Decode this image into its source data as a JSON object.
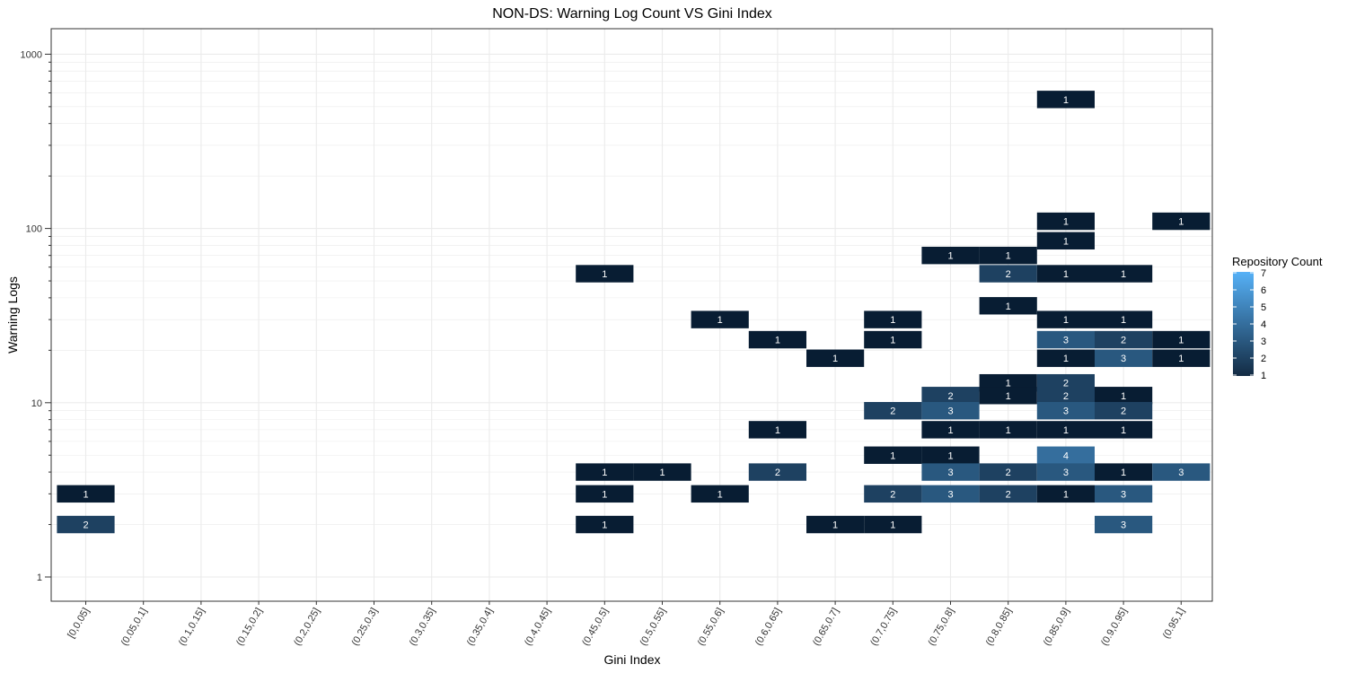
{
  "chart_data": {
    "type": "heatmap",
    "title": "NON-DS: Warning Log Count VS Gini Index",
    "xlabel": "Gini Index",
    "ylabel": "Warning Logs",
    "y_scale": "log10",
    "y_ticks": [
      1,
      10,
      100,
      1000
    ],
    "y_tick_labels": [
      "1",
      "10",
      "100",
      "1000"
    ],
    "categories": [
      "[0,0.05]",
      "(0.05,0.1]",
      "(0.1,0.15]",
      "(0.15,0.2]",
      "(0.2,0.25]",
      "(0.25,0.3]",
      "(0.3,0.35]",
      "(0.35,0.4]",
      "(0.4,0.45]",
      "(0.45,0.5]",
      "(0.5,0.55]",
      "(0.55,0.6]",
      "(0.6,0.65]",
      "(0.65,0.7]",
      "(0.7,0.75]",
      "(0.75,0.8]",
      "(0.8,0.85]",
      "(0.85,0.9]",
      "(0.9,0.95]",
      "(0.95,1]"
    ],
    "grid": true,
    "legend": {
      "title": "Repository Count",
      "position": "right",
      "min": 1,
      "max": 7,
      "labels": [
        "7",
        "6",
        "5",
        "4",
        "3",
        "2",
        "1"
      ],
      "low_color": "#132B43",
      "high_color": "#56B1F7"
    },
    "cells": [
      {
        "x": "[0,0.05]",
        "y": 3,
        "count": 1
      },
      {
        "x": "[0,0.05]",
        "y": 2,
        "count": 2
      },
      {
        "x": "(0.45,0.5]",
        "y": 55,
        "count": 1
      },
      {
        "x": "(0.45,0.5]",
        "y": 4,
        "count": 1
      },
      {
        "x": "(0.45,0.5]",
        "y": 3,
        "count": 1
      },
      {
        "x": "(0.45,0.5]",
        "y": 2,
        "count": 1
      },
      {
        "x": "(0.5,0.55]",
        "y": 4,
        "count": 1
      },
      {
        "x": "(0.55,0.6]",
        "y": 30,
        "count": 1
      },
      {
        "x": "(0.55,0.6]",
        "y": 3,
        "count": 1
      },
      {
        "x": "(0.6,0.65]",
        "y": 23,
        "count": 1
      },
      {
        "x": "(0.6,0.65]",
        "y": 7,
        "count": 1
      },
      {
        "x": "(0.6,0.65]",
        "y": 4,
        "count": 2
      },
      {
        "x": "(0.65,0.7]",
        "y": 18,
        "count": 1
      },
      {
        "x": "(0.65,0.7]",
        "y": 2,
        "count": 1
      },
      {
        "x": "(0.7,0.75]",
        "y": 30,
        "count": 1
      },
      {
        "x": "(0.7,0.75]",
        "y": 23,
        "count": 1
      },
      {
        "x": "(0.7,0.75]",
        "y": 9,
        "count": 2
      },
      {
        "x": "(0.7,0.75]",
        "y": 5,
        "count": 1
      },
      {
        "x": "(0.7,0.75]",
        "y": 3,
        "count": 2
      },
      {
        "x": "(0.7,0.75]",
        "y": 2,
        "count": 1
      },
      {
        "x": "(0.75,0.8]",
        "y": 70,
        "count": 1
      },
      {
        "x": "(0.75,0.8]",
        "y": 11,
        "count": 2
      },
      {
        "x": "(0.75,0.8]",
        "y": 9,
        "count": 3
      },
      {
        "x": "(0.75,0.8]",
        "y": 7,
        "count": 1
      },
      {
        "x": "(0.75,0.8]",
        "y": 5,
        "count": 1
      },
      {
        "x": "(0.75,0.8]",
        "y": 4,
        "count": 3
      },
      {
        "x": "(0.75,0.8]",
        "y": 3,
        "count": 3
      },
      {
        "x": "(0.8,0.85]",
        "y": 70,
        "count": 1
      },
      {
        "x": "(0.8,0.85]",
        "y": 55,
        "count": 2
      },
      {
        "x": "(0.8,0.85]",
        "y": 36,
        "count": 1
      },
      {
        "x": "(0.8,0.85]",
        "y": 13,
        "count": 1
      },
      {
        "x": "(0.8,0.85]",
        "y": 11,
        "count": 1
      },
      {
        "x": "(0.8,0.85]",
        "y": 7,
        "count": 1
      },
      {
        "x": "(0.8,0.85]",
        "y": 4,
        "count": 2
      },
      {
        "x": "(0.8,0.85]",
        "y": 3,
        "count": 2
      },
      {
        "x": "(0.85,0.9]",
        "y": 550,
        "count": 1
      },
      {
        "x": "(0.85,0.9]",
        "y": 110,
        "count": 1
      },
      {
        "x": "(0.85,0.9]",
        "y": 85,
        "count": 1
      },
      {
        "x": "(0.85,0.9]",
        "y": 55,
        "count": 1
      },
      {
        "x": "(0.85,0.9]",
        "y": 30,
        "count": 1
      },
      {
        "x": "(0.85,0.9]",
        "y": 23,
        "count": 3
      },
      {
        "x": "(0.85,0.9]",
        "y": 18,
        "count": 1
      },
      {
        "x": "(0.85,0.9]",
        "y": 13,
        "count": 2
      },
      {
        "x": "(0.85,0.9]",
        "y": 11,
        "count": 2
      },
      {
        "x": "(0.85,0.9]",
        "y": 9,
        "count": 3
      },
      {
        "x": "(0.85,0.9]",
        "y": 7,
        "count": 1
      },
      {
        "x": "(0.85,0.9]",
        "y": 5,
        "count": 4
      },
      {
        "x": "(0.85,0.9]",
        "y": 4,
        "count": 3
      },
      {
        "x": "(0.85,0.9]",
        "y": 3,
        "count": 1
      },
      {
        "x": "(0.9,0.95]",
        "y": 55,
        "count": 1
      },
      {
        "x": "(0.9,0.95]",
        "y": 30,
        "count": 1
      },
      {
        "x": "(0.9,0.95]",
        "y": 23,
        "count": 2
      },
      {
        "x": "(0.9,0.95]",
        "y": 18,
        "count": 3
      },
      {
        "x": "(0.9,0.95]",
        "y": 11,
        "count": 1
      },
      {
        "x": "(0.9,0.95]",
        "y": 9,
        "count": 2
      },
      {
        "x": "(0.9,0.95]",
        "y": 7,
        "count": 1
      },
      {
        "x": "(0.9,0.95]",
        "y": 4,
        "count": 1
      },
      {
        "x": "(0.9,0.95]",
        "y": 3,
        "count": 3
      },
      {
        "x": "(0.9,0.95]",
        "y": 2,
        "count": 3
      },
      {
        "x": "(0.95,1]",
        "y": 110,
        "count": 1
      },
      {
        "x": "(0.95,1]",
        "y": 23,
        "count": 1
      },
      {
        "x": "(0.95,1]",
        "y": 18,
        "count": 1
      },
      {
        "x": "(0.95,1]",
        "y": 4,
        "count": 3
      }
    ]
  }
}
